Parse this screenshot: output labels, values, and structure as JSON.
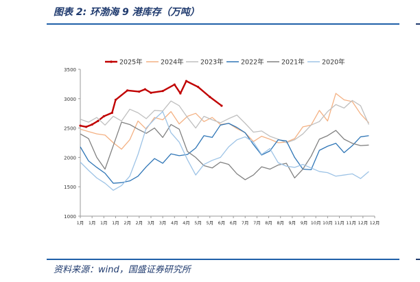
{
  "header": {
    "title": "图表 2:  环渤海 9 港库存（万吨）"
  },
  "footer": {
    "source": "资料来源：wind，国盛证券研究所"
  },
  "chart_data": {
    "type": "line",
    "title": "环渤海9港库存（万吨）",
    "ylim": [
      1000,
      3500
    ],
    "yticks": [
      "1000",
      "1500",
      "2000",
      "2500",
      "3000",
      "3500"
    ],
    "xticks": [
      "1月",
      "1月",
      "1月",
      "1月",
      "2月",
      "2月",
      "3月",
      "3月",
      "4月",
      "4月",
      "5月",
      "5月",
      "6月",
      "6月",
      "7月",
      "7月",
      "8月",
      "8月",
      "9月",
      "9月",
      "10月",
      "10月",
      "11月",
      "11月",
      "12月",
      "12月"
    ],
    "legend_position": "top",
    "series": [
      {
        "name": "2025年",
        "color": "#c00000",
        "values": [
          2540,
          2520,
          2560,
          2620,
          2700,
          2760,
          2980,
          3140,
          3120,
          3160,
          3100,
          3130,
          3240,
          3090,
          3300,
          3200,
          3030,
          2880
        ],
        "x": [
          0,
          0.5,
          1,
          1.5,
          2,
          2.7,
          3,
          4,
          5,
          5.5,
          6,
          7,
          8,
          8.5,
          9,
          10,
          11,
          12
        ]
      },
      {
        "name": "2024年",
        "color": "#f4b183",
        "values": [
          2480,
          2440,
          2400,
          2380,
          2250,
          2140,
          2300,
          2620,
          2480,
          2680,
          2640,
          2780,
          2570,
          2700,
          2750,
          2610,
          2680,
          2560,
          2580,
          2490,
          2420,
          2270,
          2360,
          2310,
          2250,
          2260,
          2320,
          2520,
          2550,
          2800,
          2620,
          3090,
          2980,
          2950,
          2740,
          2590
        ],
        "x": [
          0,
          0.7,
          1.4,
          2.1,
          2.8,
          3.5,
          4.2,
          4.9,
          5.6,
          6.3,
          7,
          7.7,
          8.4,
          9.1,
          9.8,
          10.5,
          11.2,
          11.9,
          12.6,
          13.3,
          14,
          14.7,
          15.4,
          16.1,
          16.8,
          17.5,
          18.2,
          18.9,
          19.6,
          20.3,
          21,
          21.7,
          22.4,
          23.1,
          23.8,
          24.5
        ]
      },
      {
        "name": "2023年",
        "color": "#bfbfbf",
        "values": [
          2650,
          2600,
          2680,
          2550,
          2700,
          2620,
          2820,
          2760,
          2660,
          2800,
          2790,
          2960,
          2880,
          2680,
          2500,
          2700,
          2640,
          2590,
          2660,
          2720,
          2580,
          2430,
          2450,
          2360,
          2310,
          2250,
          2300,
          2400,
          2550,
          2610,
          2780,
          2900,
          2840,
          2970,
          2880,
          2560
        ],
        "x": [
          0,
          0.7,
          1.4,
          2.1,
          2.8,
          3.5,
          4.2,
          4.9,
          5.6,
          6.3,
          7,
          7.7,
          8.4,
          9.1,
          9.8,
          10.5,
          11.2,
          11.9,
          12.6,
          13.3,
          14,
          14.7,
          15.4,
          16.1,
          16.8,
          17.5,
          18.2,
          18.9,
          19.6,
          20.3,
          21,
          21.7,
          22.4,
          23.1,
          23.8,
          24.5
        ]
      },
      {
        "name": "2022年",
        "color": "#2e75b6",
        "values": [
          2180,
          1940,
          1830,
          1730,
          1560,
          1570,
          1600,
          1680,
          1840,
          1980,
          1900,
          2060,
          2030,
          2050,
          2160,
          2370,
          2340,
          2550,
          2580,
          2510,
          2420,
          2220,
          2040,
          2110,
          2300,
          2280,
          2000,
          1800,
          1790,
          2120,
          2190,
          2240,
          2080,
          2200,
          2350,
          2370
        ],
        "x": [
          0,
          0.7,
          1.4,
          2.1,
          2.8,
          3.5,
          4.2,
          4.9,
          5.6,
          6.3,
          7,
          7.7,
          8.4,
          9.1,
          9.8,
          10.5,
          11.2,
          11.9,
          12.6,
          13.3,
          14,
          14.7,
          15.4,
          16.1,
          16.8,
          17.5,
          18.2,
          18.9,
          19.6,
          20.3,
          21,
          21.7,
          22.4,
          23.1,
          23.8,
          24.5
        ]
      },
      {
        "name": "2021年",
        "color": "#808080",
        "values": [
          2400,
          2320,
          2000,
          1800,
          2200,
          2600,
          2560,
          2480,
          2410,
          2500,
          2340,
          2560,
          2480,
          2100,
          2000,
          1860,
          1820,
          1920,
          1880,
          1720,
          1620,
          1700,
          1840,
          1800,
          1870,
          1900,
          1650,
          1800,
          2020,
          2310,
          2370,
          2460,
          2310,
          2240,
          2200,
          2210
        ],
        "x": [
          0,
          0.7,
          1.4,
          2.1,
          2.8,
          3.5,
          4.2,
          4.9,
          5.6,
          6.3,
          7,
          7.7,
          8.4,
          9.1,
          9.8,
          10.5,
          11.2,
          11.9,
          12.6,
          13.3,
          14,
          14.7,
          15.4,
          16.1,
          16.8,
          17.5,
          18.2,
          18.9,
          19.6,
          20.3,
          21,
          21.7,
          22.4,
          23.1,
          23.8,
          24.5
        ]
      },
      {
        "name": "2020年",
        "color": "#9dc3e6",
        "values": [
          1920,
          1780,
          1650,
          1560,
          1440,
          1520,
          1680,
          2050,
          2500,
          2650,
          2780,
          2420,
          2260,
          1960,
          1700,
          1880,
          1950,
          2000,
          2180,
          2300,
          2350,
          2260,
          2050,
          2150,
          1910,
          1850,
          1830,
          1880,
          1820,
          1760,
          1740,
          1680,
          1700,
          1720,
          1640,
          1760
        ],
        "x": [
          0,
          0.7,
          1.4,
          2.1,
          2.8,
          3.5,
          4.2,
          4.9,
          5.6,
          6.3,
          7,
          7.7,
          8.4,
          9.1,
          9.8,
          10.5,
          11.2,
          11.9,
          12.6,
          13.3,
          14,
          14.7,
          15.4,
          16.1,
          16.8,
          17.5,
          18.2,
          18.9,
          19.6,
          20.3,
          21,
          21.7,
          22.4,
          23.1,
          23.8,
          24.5
        ]
      }
    ]
  }
}
